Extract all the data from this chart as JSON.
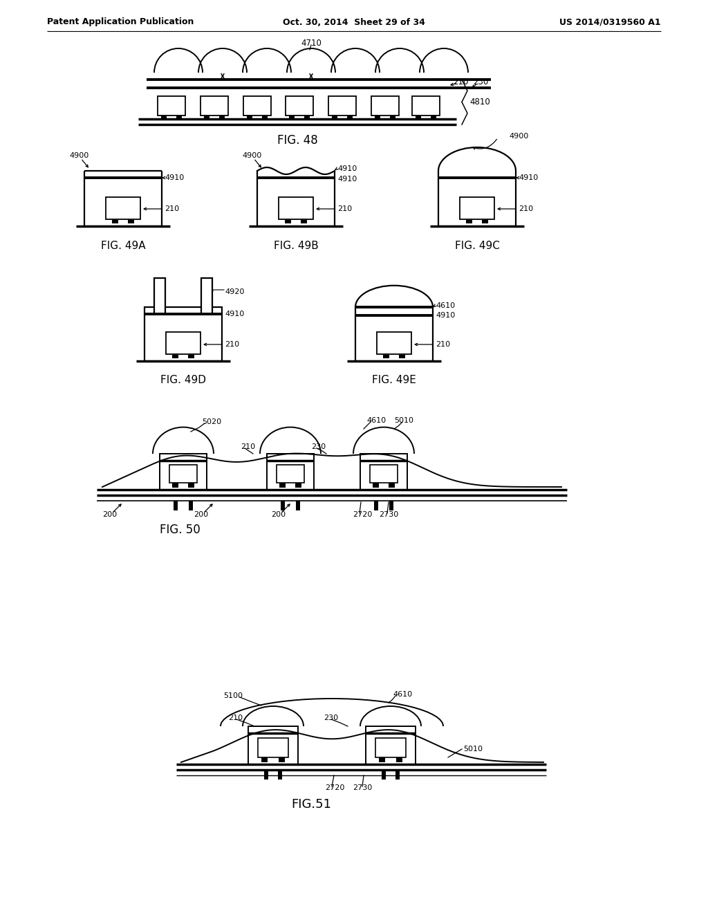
{
  "bg_color": "#ffffff",
  "text_color": "#000000",
  "header_left": "Patent Application Publication",
  "header_center": "Oct. 30, 2014  Sheet 29 of 34",
  "header_right": "US 2014/0319560 A1",
  "fig48_label": "FIG. 48",
  "fig49a_label": "FIG. 49A",
  "fig49b_label": "FIG. 49B",
  "fig49c_label": "FIG. 49C",
  "fig49d_label": "FIG. 49D",
  "fig49e_label": "FIG. 49E",
  "fig50_label": "FIG. 50",
  "fig51_label": "FIG.51"
}
